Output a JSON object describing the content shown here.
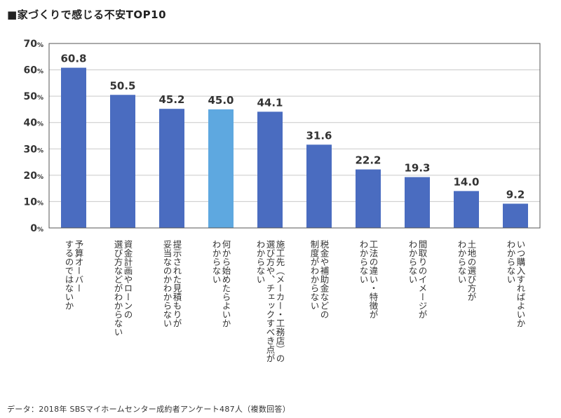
{
  "title": "■家づくりで感じる不安TOP10",
  "source": "データ：2018年 SBSマイホームセンター成約者アンケート487人（複数回答）",
  "chart_data": {
    "type": "bar",
    "title": "■家づくりで感じる不安TOP10",
    "xlabel": "",
    "ylabel": "",
    "ylim": [
      0,
      70
    ],
    "yticks": [
      "0%",
      "10%",
      "20%",
      "30%",
      "40%",
      "50%",
      "60%",
      "70%"
    ],
    "grid": true,
    "categories": [
      "予算オーバーするのではないか",
      "資金計画やローンの選び方などがわからない",
      "提示された見積もりが妥当なのかわからない",
      "何から始めたらよいかわからない",
      "施工先（メーカー・工務店）の選び方や、チェックすべき点がわからない",
      "税金や補助金などの制度がわからない",
      "工法の違い・特徴がわからない",
      "間取りのイメージがわからない",
      "土地の選び方がわからない",
      "いつ購入すればよいかわからない"
    ],
    "category_lines": [
      [
        "予算オーバー",
        "するのではないか"
      ],
      [
        "資金計画やローンの",
        "選び方などがわからない"
      ],
      [
        "提示された見積もりが",
        "妥当なのかわからない"
      ],
      [
        "何から始めたらよいか",
        "わからない"
      ],
      [
        "施工先（メーカー・工務店）の",
        "選び方や、チェックすべき点が",
        "わからない"
      ],
      [
        "税金や補助金などの",
        "制度がわからない"
      ],
      [
        "工法の違い・特徴が",
        "わからない"
      ],
      [
        "間取りのイメージが",
        "わからない"
      ],
      [
        "土地の選び方が",
        "わからない"
      ],
      [
        "いつ購入すればよいか",
        "わからない"
      ]
    ],
    "values": [
      60.8,
      50.5,
      45.2,
      45.0,
      44.1,
      31.6,
      22.2,
      19.3,
      14.0,
      9.2
    ],
    "value_labels": [
      "60.8",
      "50.5",
      "45.2",
      "45.0",
      "44.1",
      "31.6",
      "22.2",
      "19.3",
      "14.0",
      "9.2"
    ],
    "colors": {
      "bar": "#4a6cc0",
      "highlight": "#5ea8e0",
      "grid": "#c9c9c9",
      "frame": "#555555"
    },
    "highlight_index": 3
  }
}
